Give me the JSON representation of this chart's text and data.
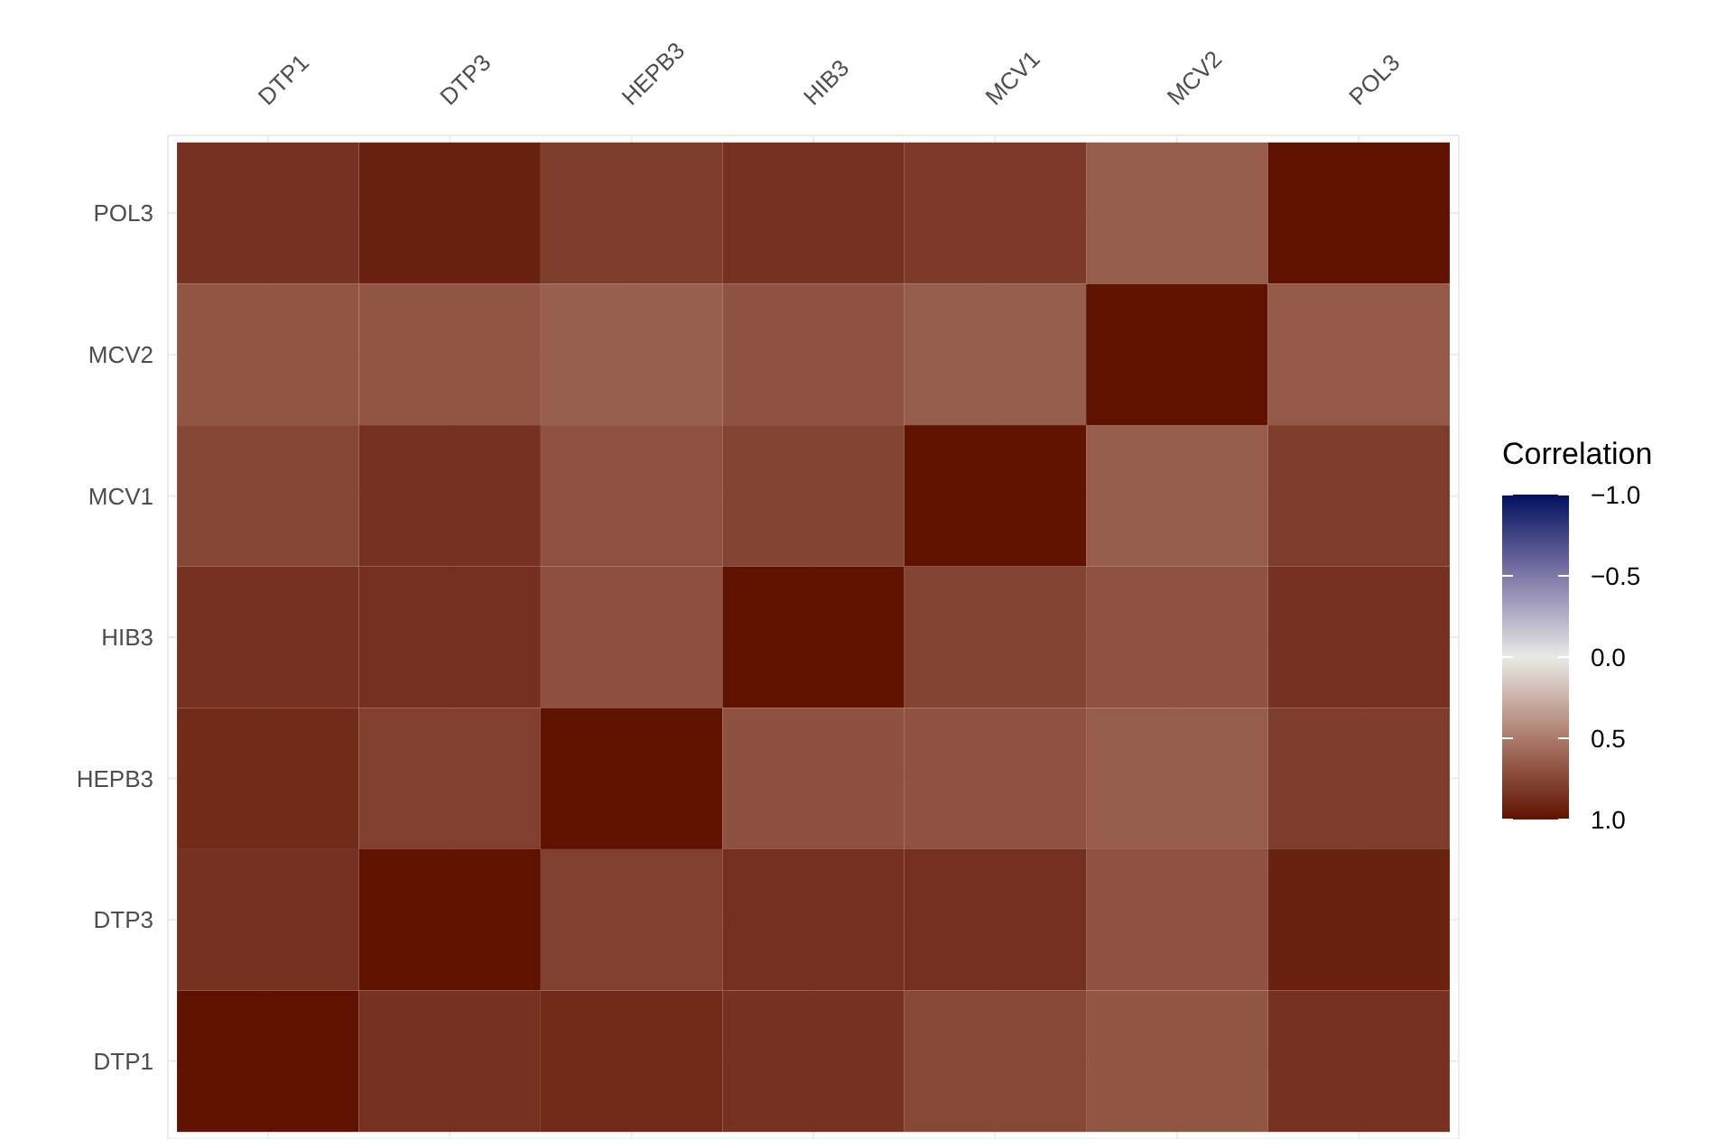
{
  "chart_data": {
    "type": "heatmap",
    "categories": [
      "DTP1",
      "DTP3",
      "HEPB3",
      "HIB3",
      "MCV1",
      "MCV2",
      "POL3"
    ],
    "y_categories": [
      "POL3",
      "MCV2",
      "MCV1",
      "HIB3",
      "HEPB3",
      "DTP3",
      "DTP1"
    ],
    "cells": [
      [
        0.85,
        0.93,
        0.8,
        0.85,
        0.81,
        0.64,
        1
      ],
      [
        0.68,
        0.68,
        0.63,
        0.69,
        0.64,
        1,
        0.66
      ],
      [
        0.75,
        0.85,
        0.69,
        0.76,
        1,
        0.64,
        0.8
      ],
      [
        0.85,
        0.86,
        0.7,
        1,
        0.76,
        0.69,
        0.85
      ],
      [
        0.88,
        0.78,
        1,
        0.7,
        0.69,
        0.64,
        0.8
      ],
      [
        0.85,
        1,
        0.78,
        0.86,
        0.86,
        0.69,
        0.93
      ],
      [
        1,
        0.85,
        0.88,
        0.85,
        0.74,
        0.68,
        0.85
      ]
    ],
    "clabel": "Correlation",
    "clim": [
      -1,
      1
    ],
    "cticks": [
      {
        "value": -1,
        "label": "−1.0"
      },
      {
        "value": -0.5,
        "label": "−0.5"
      },
      {
        "value": 0,
        "label": "0.0"
      },
      {
        "value": 0.5,
        "label": "0.5"
      },
      {
        "value": 1,
        "label": "1.0"
      }
    ]
  }
}
